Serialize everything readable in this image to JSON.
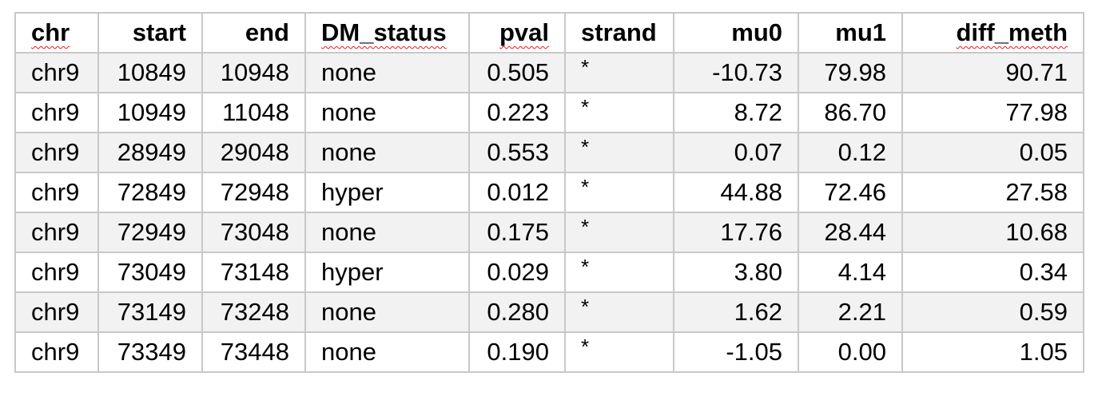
{
  "table": {
    "columns": [
      {
        "label": "chr",
        "align": "left",
        "spellcheck": true
      },
      {
        "label": "start",
        "align": "right",
        "spellcheck": false
      },
      {
        "label": "end",
        "align": "right",
        "spellcheck": false
      },
      {
        "label": "DM_status",
        "align": "left",
        "spellcheck": true
      },
      {
        "label": "pval",
        "align": "right",
        "spellcheck": true
      },
      {
        "label": "strand",
        "align": "left",
        "spellcheck": false
      },
      {
        "label": "mu0",
        "align": "right",
        "spellcheck": false
      },
      {
        "label": "mu1",
        "align": "right",
        "spellcheck": false
      },
      {
        "label": "diff_meth",
        "align": "right",
        "spellcheck": true
      }
    ],
    "rows": [
      [
        "chr9",
        "10849",
        "10948",
        "none",
        "0.505",
        "*",
        "-10.73",
        "79.98",
        "90.71"
      ],
      [
        "chr9",
        "10949",
        "11048",
        "none",
        "0.223",
        "*",
        "8.72",
        "86.70",
        "77.98"
      ],
      [
        "chr9",
        "28949",
        "29048",
        "none",
        "0.553",
        "*",
        "0.07",
        "0.12",
        "0.05"
      ],
      [
        "chr9",
        "72849",
        "72948",
        "hyper",
        "0.012",
        "*",
        "44.88",
        "72.46",
        "27.58"
      ],
      [
        "chr9",
        "72949",
        "73048",
        "none",
        "0.175",
        "*",
        "17.76",
        "28.44",
        "10.68"
      ],
      [
        "chr9",
        "73049",
        "73148",
        "hyper",
        "0.029",
        "*",
        "3.80",
        "4.14",
        "0.34"
      ],
      [
        "chr9",
        "73149",
        "73248",
        "none",
        "0.280",
        "*",
        "1.62",
        "2.21",
        "0.59"
      ],
      [
        "chr9",
        "73349",
        "73448",
        "none",
        "0.190",
        "*",
        "-1.05",
        "0.00",
        "1.05"
      ]
    ]
  },
  "colors": {
    "grid_border": "#c8c8c8",
    "striped_row": "#f2f2f2",
    "spellcheck_underline": "#e02020"
  }
}
